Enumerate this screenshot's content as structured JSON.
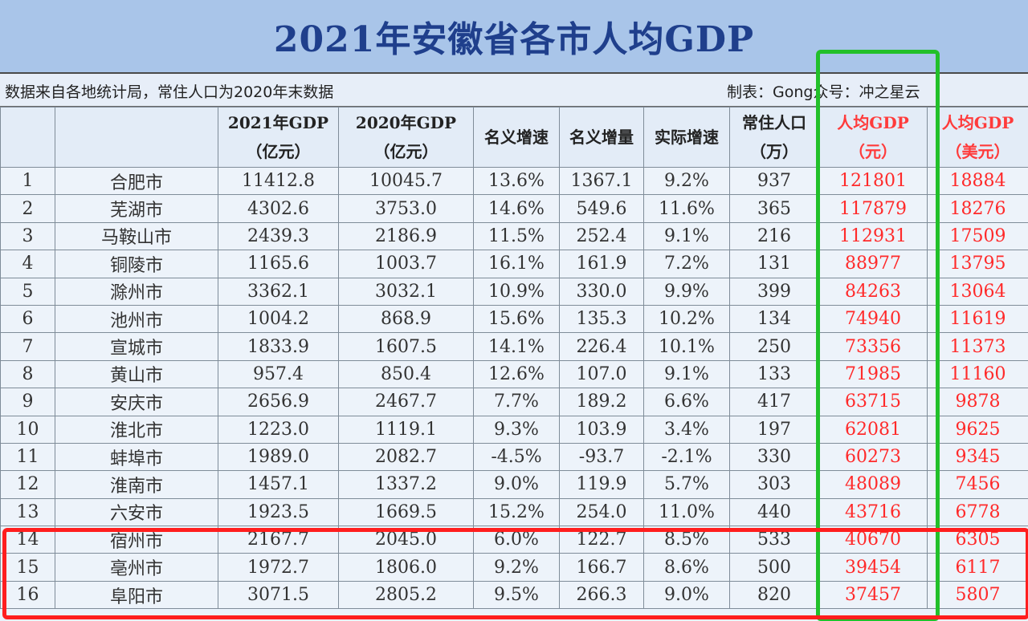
{
  "title": "2021年安徽省各市人均GDP",
  "subtitle_left": "数据来自各地统计局，常住人口为2020年末数据",
  "subtitle_right": "制表：Gong众号：冲之星云",
  "headers": {
    "rank": "",
    "city": "",
    "gdp2021_line1": "2021年GDP",
    "gdp2021_line2": "（亿元）",
    "gdp2020_line1": "2020年GDP",
    "gdp2020_line2": "（亿元）",
    "nominal_growth": "名义增速",
    "nominal_increase": "名义增量",
    "real_growth": "实际增速",
    "population_line1": "常住人口",
    "population_line2": "（万）",
    "per_capita_cny_line1": "人均GDP",
    "per_capita_cny_line2": "（元）",
    "per_capita_usd_line1": "人均GDP",
    "per_capita_usd_line2": "（美元）"
  },
  "rows": [
    {
      "rank": "1",
      "city": "合肥市",
      "gdp2021": "11412.8",
      "gdp2020": "10045.7",
      "nominal_growth": "13.6%",
      "nominal_increase": "1367.1",
      "real_growth": "9.2%",
      "population": "937",
      "per_capita_cny": "121801",
      "per_capita_usd": "18884"
    },
    {
      "rank": "2",
      "city": "芜湖市",
      "gdp2021": "4302.6",
      "gdp2020": "3753.0",
      "nominal_growth": "14.6%",
      "nominal_increase": "549.6",
      "real_growth": "11.6%",
      "population": "365",
      "per_capita_cny": "117879",
      "per_capita_usd": "18276"
    },
    {
      "rank": "3",
      "city": "马鞍山市",
      "gdp2021": "2439.3",
      "gdp2020": "2186.9",
      "nominal_growth": "11.5%",
      "nominal_increase": "252.4",
      "real_growth": "9.1%",
      "population": "216",
      "per_capita_cny": "112931",
      "per_capita_usd": "17509"
    },
    {
      "rank": "4",
      "city": "铜陵市",
      "gdp2021": "1165.6",
      "gdp2020": "1003.7",
      "nominal_growth": "16.1%",
      "nominal_increase": "161.9",
      "real_growth": "7.2%",
      "population": "131",
      "per_capita_cny": "88977",
      "per_capita_usd": "13795"
    },
    {
      "rank": "5",
      "city": "滁州市",
      "gdp2021": "3362.1",
      "gdp2020": "3032.1",
      "nominal_growth": "10.9%",
      "nominal_increase": "330.0",
      "real_growth": "9.9%",
      "population": "399",
      "per_capita_cny": "84263",
      "per_capita_usd": "13064"
    },
    {
      "rank": "6",
      "city": "池州市",
      "gdp2021": "1004.2",
      "gdp2020": "868.9",
      "nominal_growth": "15.6%",
      "nominal_increase": "135.3",
      "real_growth": "10.2%",
      "population": "134",
      "per_capita_cny": "74940",
      "per_capita_usd": "11619"
    },
    {
      "rank": "7",
      "city": "宣城市",
      "gdp2021": "1833.9",
      "gdp2020": "1607.5",
      "nominal_growth": "14.1%",
      "nominal_increase": "226.4",
      "real_growth": "10.1%",
      "population": "250",
      "per_capita_cny": "73356",
      "per_capita_usd": "11373"
    },
    {
      "rank": "8",
      "city": "黄山市",
      "gdp2021": "957.4",
      "gdp2020": "850.4",
      "nominal_growth": "12.6%",
      "nominal_increase": "107.0",
      "real_growth": "9.1%",
      "population": "133",
      "per_capita_cny": "71985",
      "per_capita_usd": "11160"
    },
    {
      "rank": "9",
      "city": "安庆市",
      "gdp2021": "2656.9",
      "gdp2020": "2467.7",
      "nominal_growth": "7.7%",
      "nominal_increase": "189.2",
      "real_growth": "6.6%",
      "population": "417",
      "per_capita_cny": "63715",
      "per_capita_usd": "9878"
    },
    {
      "rank": "10",
      "city": "淮北市",
      "gdp2021": "1223.0",
      "gdp2020": "1119.1",
      "nominal_growth": "9.3%",
      "nominal_increase": "103.9",
      "real_growth": "3.4%",
      "population": "197",
      "per_capita_cny": "62081",
      "per_capita_usd": "9625"
    },
    {
      "rank": "11",
      "city": "蚌埠市",
      "gdp2021": "1989.0",
      "gdp2020": "2082.7",
      "nominal_growth": "-4.5%",
      "nominal_increase": "-93.7",
      "real_growth": "-2.1%",
      "population": "330",
      "per_capita_cny": "60273",
      "per_capita_usd": "9345"
    },
    {
      "rank": "12",
      "city": "淮南市",
      "gdp2021": "1457.1",
      "gdp2020": "1337.2",
      "nominal_growth": "9.0%",
      "nominal_increase": "119.9",
      "real_growth": "5.7%",
      "population": "303",
      "per_capita_cny": "48089",
      "per_capita_usd": "7456"
    },
    {
      "rank": "13",
      "city": "六安市",
      "gdp2021": "1923.5",
      "gdp2020": "1669.5",
      "nominal_growth": "15.2%",
      "nominal_increase": "254.0",
      "real_growth": "11.0%",
      "population": "440",
      "per_capita_cny": "43716",
      "per_capita_usd": "6778"
    },
    {
      "rank": "14",
      "city": "宿州市",
      "gdp2021": "2167.7",
      "gdp2020": "2045.0",
      "nominal_growth": "6.0%",
      "nominal_increase": "122.7",
      "real_growth": "8.5%",
      "population": "533",
      "per_capita_cny": "40670",
      "per_capita_usd": "6305"
    },
    {
      "rank": "15",
      "city": "亳州市",
      "gdp2021": "1972.7",
      "gdp2020": "1806.0",
      "nominal_growth": "9.2%",
      "nominal_increase": "166.7",
      "real_growth": "8.6%",
      "population": "500",
      "per_capita_cny": "39454",
      "per_capita_usd": "6117"
    },
    {
      "rank": "16",
      "city": "阜阳市",
      "gdp2021": "3071.5",
      "gdp2020": "2805.2",
      "nominal_growth": "9.5%",
      "nominal_increase": "266.3",
      "real_growth": "9.0%",
      "population": "820",
      "per_capita_cny": "37457",
      "per_capita_usd": "5807"
    }
  ],
  "colors": {
    "title_bg": "#a9c5e9",
    "title_text": "#1f3f8c",
    "highlight_red": "#ff2a2a",
    "green_box": "#22c02a",
    "red_box": "#ff1e1e"
  }
}
